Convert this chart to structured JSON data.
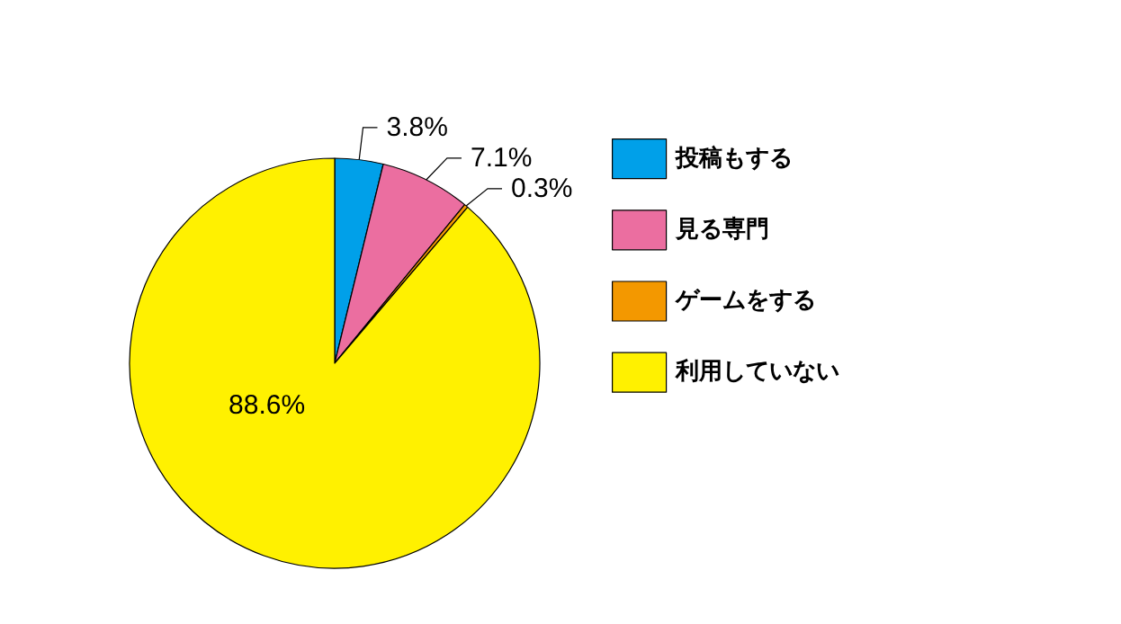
{
  "chart_data": {
    "type": "pie",
    "categories": [
      "投稿もする",
      "見る専門",
      "ゲームをする",
      "利用していない"
    ],
    "values": [
      3.8,
      7.1,
      0.3,
      88.6
    ],
    "colors": [
      "#00a0e9",
      "#eb6ea0",
      "#f39800",
      "#fff100"
    ],
    "value_labels": [
      "3.8%",
      "7.1%",
      "0.3%",
      "88.6%"
    ],
    "legend": "right"
  }
}
